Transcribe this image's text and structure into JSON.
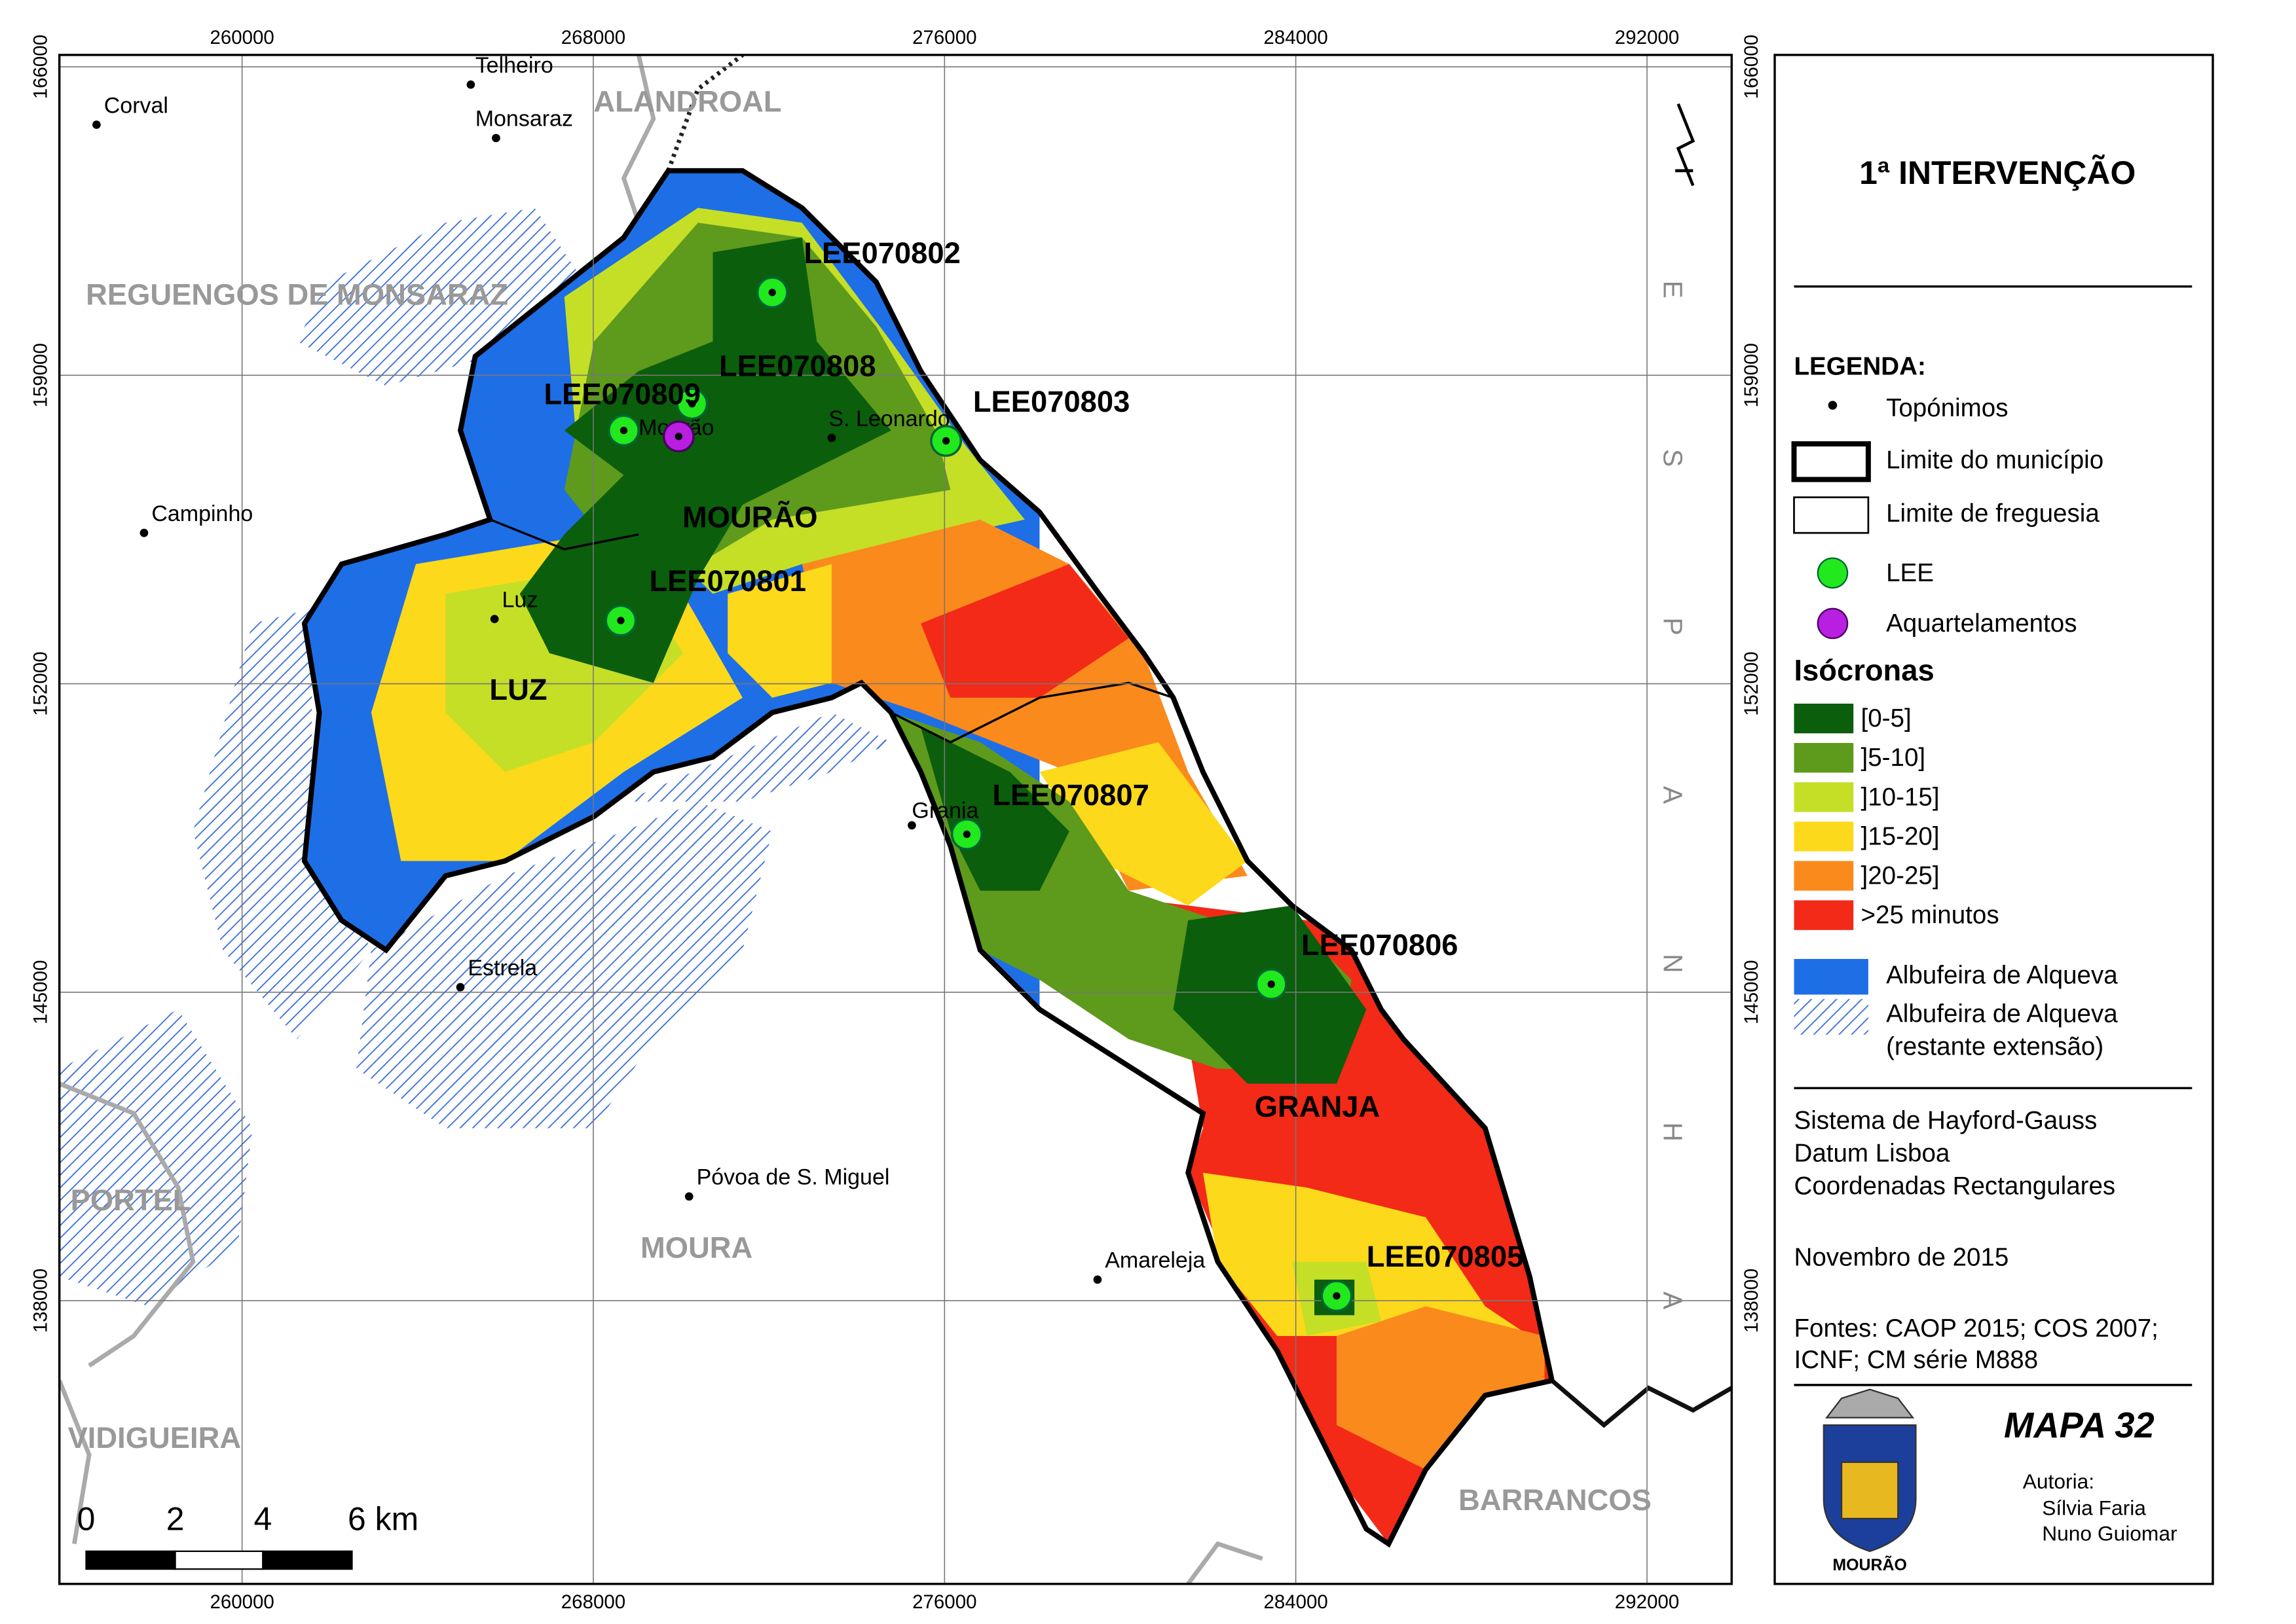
{
  "title": "1ª INTERVENÇÃO",
  "map": {
    "x_ticks": [
      "260000",
      "268000",
      "276000",
      "284000",
      "292000"
    ],
    "y_ticks": [
      "166000",
      "159000",
      "152000",
      "145000",
      "138000"
    ],
    "places": [
      {
        "label": "Corval"
      },
      {
        "label": "Telheiro"
      },
      {
        "label": "Monsaraz"
      },
      {
        "label": "Campinho"
      },
      {
        "label": "Mourão"
      },
      {
        "label": "S. Leonardo"
      },
      {
        "label": "Luz"
      },
      {
        "label": "Granja"
      },
      {
        "label": "Estrela"
      },
      {
        "label": "Póvoa de S. Miguel"
      },
      {
        "label": "Amareleja"
      }
    ],
    "regions": [
      {
        "label": "ALANDROAL"
      },
      {
        "label": "REGUENGOS DE MONSARAZ"
      },
      {
        "label": "PORTEL"
      },
      {
        "label": "VIDIGUEIRA"
      },
      {
        "label": "MOURA"
      },
      {
        "label": "BARRANCOS"
      }
    ],
    "parishes": [
      {
        "label": "MOURÃO"
      },
      {
        "label": "LUZ"
      },
      {
        "label": "GRANJA"
      }
    ],
    "stations": [
      {
        "label": "LEE070802"
      },
      {
        "label": "LEE070808"
      },
      {
        "label": "LEE070809"
      },
      {
        "label": "LEE070803"
      },
      {
        "label": "LEE070801"
      },
      {
        "label": "LEE070807"
      },
      {
        "label": "LEE070806"
      },
      {
        "label": "LEE070805"
      }
    ],
    "country": [
      "E",
      "S",
      "P",
      "A",
      "N",
      "H",
      "A"
    ],
    "scale_bar": [
      "0",
      "2",
      "4",
      "6 km"
    ]
  },
  "legend": {
    "heading": "LEGENDA:",
    "symbols": [
      "Topónimos",
      "Limite do município",
      "Limite de freguesia",
      "LEE",
      "Aquartelamentos"
    ],
    "isochrones_heading": "Isócronas",
    "isochrones": [
      {
        "label": "[0-5]",
        "color": "#0b5e0b"
      },
      {
        "label": "]5-10]",
        "color": "#5e9a1c"
      },
      {
        "label": "]10-15]",
        "color": "#c5df27"
      },
      {
        "label": "]15-20]",
        "color": "#fcd91a"
      },
      {
        "label": "]20-25]",
        "color": "#fb8a1d"
      },
      {
        "label": ">25 minutos",
        "color": "#f22a17"
      }
    ],
    "water": {
      "label": "Albufeira de Alqueva",
      "color": "#1e6ee6"
    },
    "water_rest": [
      "Albufeira de Alqueva",
      "(restante extensão)"
    ]
  },
  "projection": [
    "Sistema de Hayford-Gauss",
    "Datum Lisboa",
    "Coordenadas Rectangulares"
  ],
  "date": "Novembro de 2015",
  "sources": [
    "Fontes: CAOP 2015; COS 2007;",
    "ICNF; CM série M888"
  ],
  "map_number": "MAPA 32",
  "author": {
    "heading": "Autoria:",
    "names": [
      "Sílvia Faria",
      "Nuno Guiomar"
    ]
  },
  "crest_label": "MOURÃO"
}
